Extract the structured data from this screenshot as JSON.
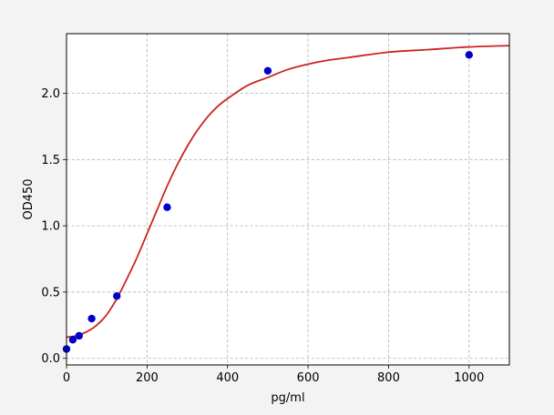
{
  "chart_data": {
    "type": "scatter",
    "title": "",
    "xlabel": "pg/ml",
    "ylabel": "OD450",
    "xlim": [
      0,
      1100
    ],
    "ylim": [
      -0.05,
      2.45
    ],
    "xticks": [
      0,
      200,
      400,
      600,
      800,
      1000
    ],
    "yticks": [
      0.0,
      0.5,
      1.0,
      1.5,
      2.0
    ],
    "grid": true,
    "series": [
      {
        "kind": "points",
        "color": "#0000cc",
        "x": [
          0,
          15.6,
          31.25,
          62.5,
          125,
          250,
          500,
          1000
        ],
        "y": [
          0.07,
          0.14,
          0.17,
          0.3,
          0.47,
          1.14,
          2.17,
          2.29
        ]
      },
      {
        "kind": "fitted-curve",
        "color": "#cc2222",
        "x": [
          0,
          25,
          50,
          75,
          100,
          125,
          150,
          175,
          200,
          225,
          250,
          275,
          300,
          325,
          350,
          375,
          400,
          450,
          500,
          550,
          600,
          650,
          700,
          800,
          900,
          1000,
          1100
        ],
        "y": [
          0.16,
          0.17,
          0.2,
          0.25,
          0.33,
          0.45,
          0.6,
          0.76,
          0.94,
          1.12,
          1.3,
          1.46,
          1.6,
          1.72,
          1.82,
          1.9,
          1.96,
          2.06,
          2.12,
          2.18,
          2.22,
          2.25,
          2.27,
          2.31,
          2.33,
          2.35,
          2.36
        ]
      }
    ]
  }
}
